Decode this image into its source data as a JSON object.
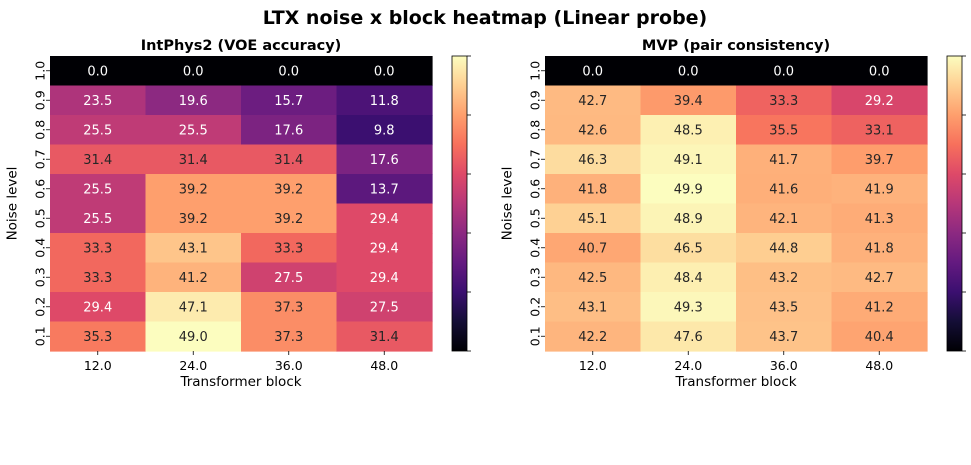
{
  "title": "LTX noise x block heatmap (Linear probe)",
  "caption": "",
  "chart_data": [
    {
      "type": "heatmap",
      "title": "IntPhys2 (VOE accuracy)",
      "xlabel": "Transformer block",
      "ylabel": "Noise level",
      "x_categories": [
        "12.0",
        "24.0",
        "36.0",
        "48.0"
      ],
      "y_categories": [
        "1.0",
        "0.9",
        "0.8",
        "0.7",
        "0.6",
        "0.5",
        "0.4",
        "0.3",
        "0.2",
        "0.1"
      ],
      "values": [
        [
          0.0,
          0.0,
          0.0,
          0.0
        ],
        [
          23.5,
          19.6,
          15.7,
          11.8
        ],
        [
          25.5,
          25.5,
          17.6,
          9.8
        ],
        [
          31.4,
          31.4,
          31.4,
          17.6
        ],
        [
          25.5,
          39.2,
          39.2,
          13.7
        ],
        [
          25.5,
          39.2,
          39.2,
          29.4
        ],
        [
          33.3,
          43.1,
          33.3,
          29.4
        ],
        [
          33.3,
          41.2,
          27.5,
          29.4
        ],
        [
          29.4,
          47.1,
          37.3,
          27.5
        ],
        [
          35.3,
          49.0,
          37.3,
          31.4
        ]
      ],
      "vmin": 0,
      "vmax": 49.0,
      "colormap": "magma",
      "colorbar": true
    },
    {
      "type": "heatmap",
      "title": "MVP (pair consistency)",
      "xlabel": "Transformer block",
      "ylabel": "Noise level",
      "x_categories": [
        "12.0",
        "24.0",
        "36.0",
        "48.0"
      ],
      "y_categories": [
        "1.0",
        "0.9",
        "0.8",
        "0.7",
        "0.6",
        "0.5",
        "0.4",
        "0.3",
        "0.2",
        "0.1"
      ],
      "values": [
        [
          0.0,
          0.0,
          0.0,
          0.0
        ],
        [
          42.7,
          39.4,
          33.3,
          29.2
        ],
        [
          42.6,
          48.5,
          35.5,
          33.1
        ],
        [
          46.3,
          49.1,
          41.7,
          39.7
        ],
        [
          41.8,
          49.9,
          41.6,
          41.9
        ],
        [
          45.1,
          48.9,
          42.1,
          41.3
        ],
        [
          40.7,
          46.5,
          44.8,
          41.8
        ],
        [
          42.5,
          48.4,
          43.2,
          42.7
        ],
        [
          43.1,
          49.3,
          43.5,
          41.2
        ],
        [
          42.2,
          47.6,
          43.7,
          40.4
        ]
      ],
      "vmin": 0,
      "vmax": 49.9,
      "colormap": "magma",
      "colorbar": true
    }
  ]
}
